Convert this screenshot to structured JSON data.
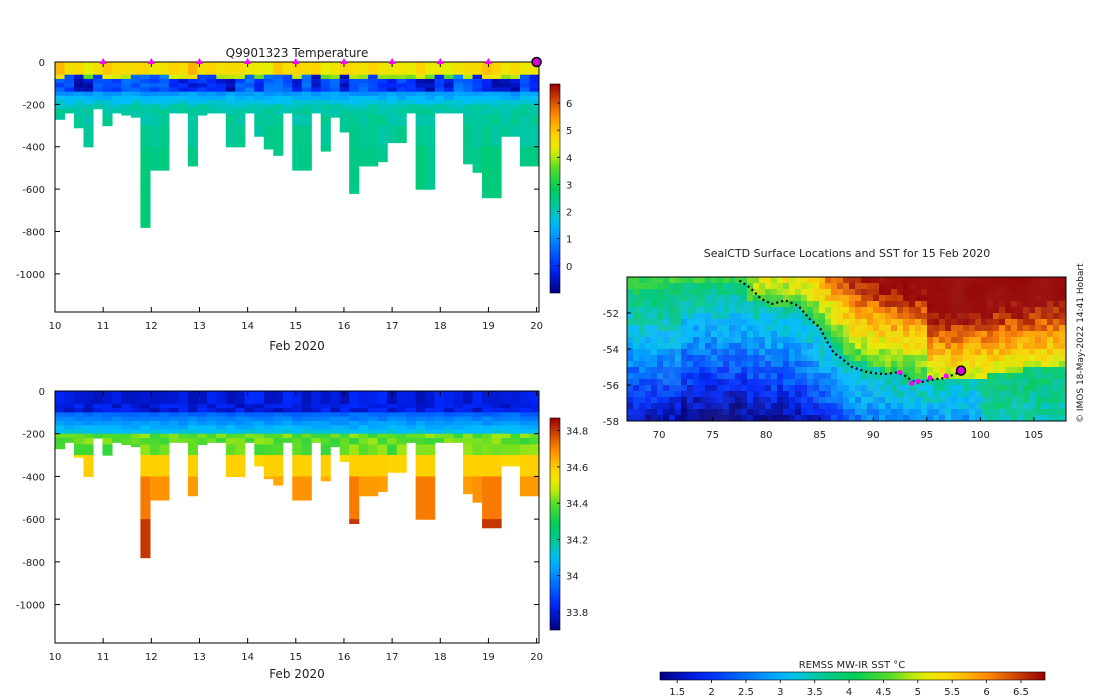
{
  "chart_data": [
    {
      "type": "heatmap",
      "title": "Q9901323  Temperature",
      "variable": "temperature",
      "xlabel": "Feb 2020",
      "ylabel": "",
      "x_ticks": [
        "10",
        "11",
        "12",
        "13",
        "14",
        "15",
        "16",
        "17",
        "18",
        "19",
        "20"
      ],
      "xlim": [
        10,
        20.05
      ],
      "y_ticks": [
        "0",
        "-200",
        "-400",
        "-600",
        "-800",
        "-1000"
      ],
      "y_tick_values": [
        0,
        -200,
        -400,
        -600,
        -800,
        -1000
      ],
      "ylim": [
        -1180,
        0
      ],
      "colorbar_ticks": [
        "0",
        "1",
        "2",
        "3",
        "4",
        "5",
        "6"
      ],
      "colorbar_tick_values": [
        0,
        1,
        2,
        3,
        4,
        5,
        6
      ],
      "colorbar_range": [
        -1,
        6.7
      ],
      "surface_markers_x": [
        11,
        12,
        13,
        14,
        15,
        16,
        17,
        18,
        19
      ],
      "current_position_x": 20,
      "profile_max_depths": [
        270,
        240,
        310,
        400,
        220,
        300,
        240,
        250,
        260,
        780,
        510,
        510,
        240,
        240,
        490,
        250,
        240,
        240,
        400,
        400,
        240,
        350,
        410,
        440,
        240,
        510,
        510,
        240,
        420,
        260,
        330,
        620,
        490,
        490,
        470,
        380,
        380,
        240,
        600,
        600,
        240,
        240,
        240,
        480,
        520,
        640,
        640,
        350,
        350,
        490,
        490
      ]
    },
    {
      "type": "heatmap",
      "title": "",
      "variable": "salinity",
      "xlabel": "Feb 2020",
      "x_ticks": [
        "10",
        "11",
        "12",
        "13",
        "14",
        "15",
        "16",
        "17",
        "18",
        "19",
        "20"
      ],
      "xlim": [
        10,
        20.05
      ],
      "y_ticks": [
        "0",
        "-200",
        "-400",
        "-600",
        "-800",
        "-1000"
      ],
      "y_tick_values": [
        0,
        -200,
        -400,
        -600,
        -800,
        -1000
      ],
      "ylim": [
        -1180,
        0
      ],
      "colorbar_ticks": [
        "33.8",
        "34",
        "34.2",
        "34.4",
        "34.6",
        "34.8"
      ],
      "colorbar_tick_values": [
        33.8,
        34.0,
        34.2,
        34.4,
        34.6,
        34.8
      ],
      "colorbar_range": [
        33.7,
        34.87
      ]
    },
    {
      "type": "heatmap",
      "title": "SealCTD Surface Locations and SST for 15 Feb 2020",
      "x_ticks": [
        "70",
        "75",
        "80",
        "85",
        "90",
        "95",
        "100",
        "105"
      ],
      "x_tick_values": [
        70,
        75,
        80,
        85,
        90,
        95,
        100,
        105
      ],
      "xlim": [
        67,
        108
      ],
      "y_ticks": [
        "-52",
        "-54",
        "-56",
        "-58"
      ],
      "y_tick_values": [
        -52,
        -54,
        -56,
        -58
      ],
      "ylim": [
        -58,
        -50
      ],
      "track": [
        [
          77.5,
          -50.2
        ],
        [
          78.5,
          -50.6
        ],
        [
          79.5,
          -51.2
        ],
        [
          80.5,
          -51.5
        ],
        [
          81.8,
          -51.3
        ],
        [
          83,
          -51.6
        ],
        [
          84,
          -52.3
        ],
        [
          85,
          -52.8
        ],
        [
          85.6,
          -53.5
        ],
        [
          86.3,
          -54.2
        ],
        [
          87.2,
          -54.6
        ],
        [
          88,
          -55
        ],
        [
          89.5,
          -55.3
        ],
        [
          91,
          -55.4
        ],
        [
          92.2,
          -55.3
        ],
        [
          93,
          -55.5
        ],
        [
          94,
          -55.9
        ],
        [
          95.5,
          -55.7
        ],
        [
          96.8,
          -55.6
        ],
        [
          98,
          -55.3
        ]
      ],
      "track_markers": [
        [
          92.5,
          -55.3
        ],
        [
          93.6,
          -55.9
        ],
        [
          94.2,
          -55.8
        ],
        [
          95.3,
          -55.6
        ],
        [
          96.8,
          -55.5
        ]
      ],
      "current_position": [
        98.2,
        -55.2
      ],
      "colorbar_label": "REMSS MW-IR SST °C",
      "colorbar_ticks": [
        "1.5",
        "2",
        "2.5",
        "3",
        "3.5",
        "4",
        "4.5",
        "5",
        "5.5",
        "6",
        "6.5"
      ],
      "colorbar_tick_values": [
        1.5,
        2,
        2.5,
        3,
        3.5,
        4,
        4.5,
        5,
        5.5,
        6,
        6.5
      ],
      "colorbar_range": [
        1.25,
        6.85
      ],
      "credit": "© IMOS 18-May-2022 14:41 Hobart"
    }
  ],
  "colors": {
    "marker": "#ff00ff",
    "current_fill": "#d800d8",
    "track": "#000000"
  }
}
